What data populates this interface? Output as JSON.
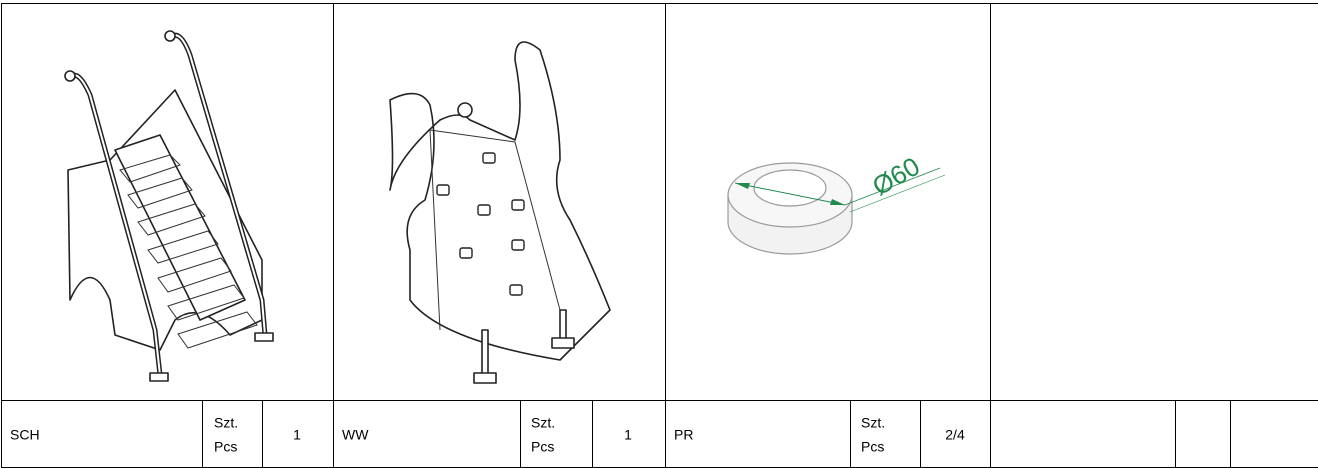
{
  "items": [
    {
      "code": "SCH",
      "unit": [
        "Szt.",
        "Pcs"
      ],
      "quantity": 1
    },
    {
      "code": "WW",
      "unit": [
        "Szt.",
        "Pcs"
      ],
      "quantity": 1
    },
    {
      "code": "PR",
      "unit": [
        "Szt.",
        "Pcs"
      ],
      "quantity": "2/4",
      "dimension": "Ø60"
    }
  ]
}
